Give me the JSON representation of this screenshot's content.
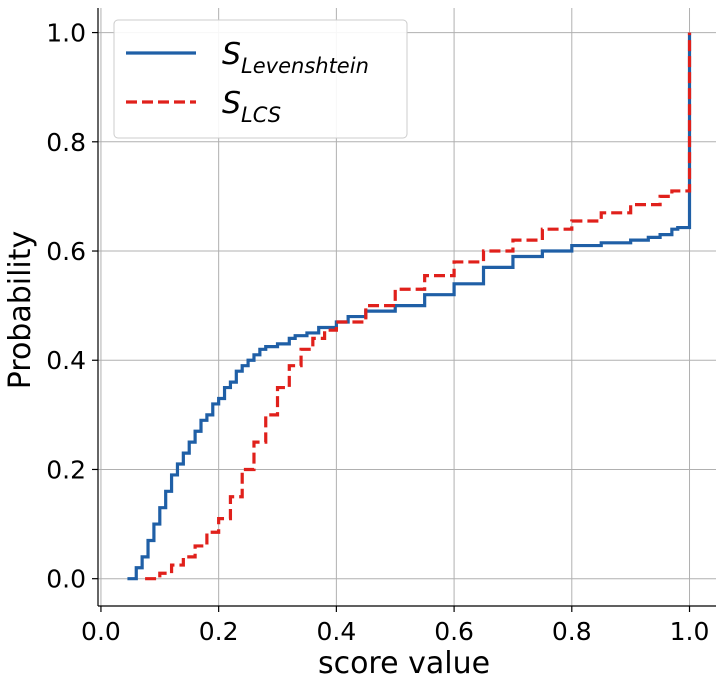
{
  "chart_data": {
    "type": "line",
    "xlabel": "score value",
    "ylabel": "Probability",
    "xlim": [
      -0.005,
      1.045
    ],
    "ylim": [
      -0.05,
      1.045
    ],
    "xticks": [
      0.0,
      0.2,
      0.4,
      0.6,
      0.8,
      1.0
    ],
    "xtick_labels": [
      "0.0",
      "0.2",
      "0.4",
      "0.6",
      "0.8",
      "1.0"
    ],
    "yticks": [
      0.0,
      0.2,
      0.4,
      0.6,
      0.8,
      1.0
    ],
    "ytick_labels": [
      "0.0",
      "0.2",
      "0.4",
      "0.6",
      "0.8",
      "1.0"
    ],
    "grid": true,
    "legend_position": "top-left",
    "series": [
      {
        "name_main": "S",
        "name_sub": "Levenshtein",
        "color": "#1f5fa6",
        "dash": "solid",
        "x": [
          0.045,
          0.06,
          0.07,
          0.08,
          0.09,
          0.1,
          0.11,
          0.12,
          0.13,
          0.14,
          0.15,
          0.16,
          0.17,
          0.18,
          0.19,
          0.2,
          0.21,
          0.22,
          0.23,
          0.24,
          0.25,
          0.26,
          0.27,
          0.28,
          0.3,
          0.32,
          0.33,
          0.35,
          0.37,
          0.4,
          0.42,
          0.45,
          0.5,
          0.55,
          0.6,
          0.65,
          0.7,
          0.75,
          0.8,
          0.85,
          0.9,
          0.93,
          0.95,
          0.97,
          0.98,
          0.999,
          1.0
        ],
        "y": [
          0.0,
          0.02,
          0.04,
          0.07,
          0.1,
          0.13,
          0.16,
          0.19,
          0.21,
          0.23,
          0.25,
          0.27,
          0.29,
          0.3,
          0.32,
          0.33,
          0.35,
          0.36,
          0.38,
          0.39,
          0.4,
          0.41,
          0.42,
          0.425,
          0.43,
          0.44,
          0.445,
          0.45,
          0.46,
          0.47,
          0.48,
          0.49,
          0.5,
          0.52,
          0.54,
          0.57,
          0.59,
          0.6,
          0.61,
          0.615,
          0.62,
          0.625,
          0.63,
          0.64,
          0.643,
          0.643,
          1.0
        ]
      },
      {
        "name_main": "S",
        "name_sub": "LCS",
        "color": "#e0201b",
        "dash": "dashed",
        "x": [
          0.075,
          0.1,
          0.12,
          0.14,
          0.16,
          0.18,
          0.2,
          0.22,
          0.24,
          0.26,
          0.28,
          0.3,
          0.32,
          0.34,
          0.36,
          0.38,
          0.4,
          0.45,
          0.5,
          0.55,
          0.6,
          0.65,
          0.7,
          0.75,
          0.8,
          0.85,
          0.9,
          0.95,
          0.97,
          0.999,
          1.0
        ],
        "y": [
          0.0,
          0.01,
          0.025,
          0.04,
          0.06,
          0.085,
          0.11,
          0.15,
          0.2,
          0.25,
          0.3,
          0.35,
          0.39,
          0.42,
          0.44,
          0.455,
          0.47,
          0.5,
          0.53,
          0.555,
          0.58,
          0.6,
          0.62,
          0.64,
          0.655,
          0.67,
          0.685,
          0.7,
          0.71,
          0.71,
          1.0
        ]
      }
    ]
  }
}
